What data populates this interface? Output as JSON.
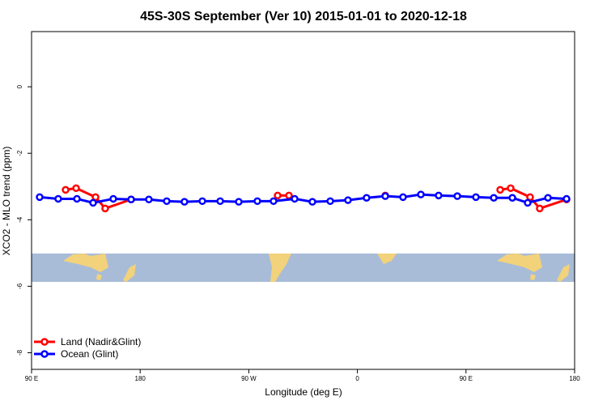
{
  "chart_data": {
    "type": "line",
    "title": "45S-30S September (Ver 10)   2015-01-01 to 2020-12-18",
    "xlabel": "Longitude (deg E)",
    "ylabel": "XCO2 - MLO trend (ppm)",
    "xlim": [
      90,
      540
    ],
    "xticks": [
      {
        "value": 90,
        "label": "90 E"
      },
      {
        "value": 180,
        "label": "180"
      },
      {
        "value": 270,
        "label": "90 W"
      },
      {
        "value": 360,
        "label": "0"
      },
      {
        "value": 450,
        "label": "90 E"
      },
      {
        "value": 540,
        "label": "180"
      }
    ],
    "ylim": [
      -8.5,
      1.66
    ],
    "yticks": [
      0,
      -2,
      -4,
      -6,
      -8
    ],
    "legend": "bottomleft",
    "series": [
      {
        "name": "Land (Nadir&Glint)",
        "color": "#ff0000",
        "x": [
          118.2,
          126.9,
          143.0,
          151.0,
          172.5,
          null,
          293.9,
          303.3,
          null,
          383.1,
          null,
          478.3,
          487.0,
          503.1,
          511.1,
          533.3
        ],
        "values": [
          -3.1,
          -3.05,
          -3.32,
          -3.66,
          -3.39,
          null,
          -3.27,
          -3.27,
          null,
          -3.27,
          null,
          -3.1,
          -3.05,
          -3.32,
          -3.66,
          -3.39
        ]
      },
      {
        "name": "Ocean (Glint)",
        "color": "#0000ff",
        "x": [
          96.7,
          112.1,
          127.6,
          141.0,
          157.7,
          172.5,
          187.2,
          202.0,
          216.7,
          231.5,
          246.3,
          261.7,
          277.1,
          290.5,
          308.0,
          322.7,
          337.5,
          352.2,
          367.6,
          383.1,
          397.8,
          412.6,
          427.3,
          442.8,
          458.2,
          473.0,
          488.4,
          501.1,
          517.9,
          533.3
        ],
        "values": [
          -3.32,
          -3.37,
          -3.37,
          -3.49,
          -3.37,
          -3.39,
          -3.39,
          -3.44,
          -3.46,
          -3.44,
          -3.44,
          -3.46,
          -3.44,
          -3.44,
          -3.37,
          -3.46,
          -3.44,
          -3.41,
          -3.34,
          -3.29,
          -3.32,
          -3.24,
          -3.27,
          -3.29,
          -3.32,
          -3.34,
          -3.34,
          -3.49,
          -3.34,
          -3.37
        ]
      }
    ]
  }
}
